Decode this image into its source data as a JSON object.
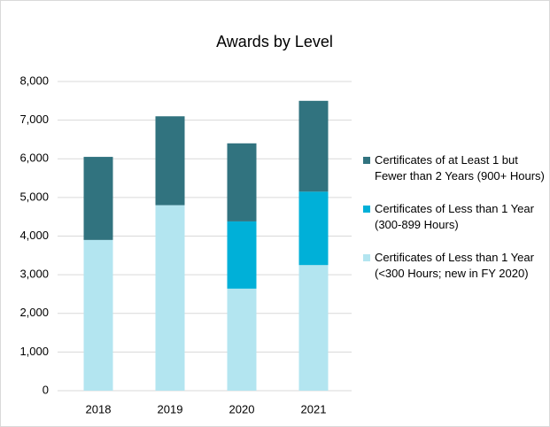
{
  "chart_data": {
    "type": "stacked_bar",
    "title": "Awards by Level",
    "categories": [
      "2018",
      "2019",
      "2020",
      "2021"
    ],
    "series": [
      {
        "name": "Certificates of Less than 1 Year (<300 Hours; new in FY 2020)",
        "color": "#b3e5f0",
        "values": [
          3900,
          4800,
          2640,
          3250
        ]
      },
      {
        "name": "Certificates of Less than 1 Year (300-899 Hours)",
        "color": "#00b0d8",
        "values": [
          null,
          null,
          1740,
          1900
        ]
      },
      {
        "name": "Certificates of at Least 1 but Fewer than 2 Years (900+ Hours)",
        "color": "#31737f",
        "values": [
          2150,
          2300,
          2020,
          2350
        ]
      }
    ],
    "ylim": [
      0,
      8000
    ],
    "yticks": [
      0,
      {
        "value": 1000,
        "label": "1,000"
      },
      {
        "value": 2000,
        "label": "2,000"
      },
      {
        "value": 3000,
        "label": "3,000"
      },
      {
        "value": 4000,
        "label": "4,000"
      },
      {
        "value": 5000,
        "label": "5,000"
      },
      {
        "value": 6000,
        "label": "6,000"
      },
      {
        "value": 7000,
        "label": "7,000"
      },
      {
        "value": 8000,
        "label": "8,000"
      }
    ],
    "grid": true,
    "legend": "right"
  }
}
